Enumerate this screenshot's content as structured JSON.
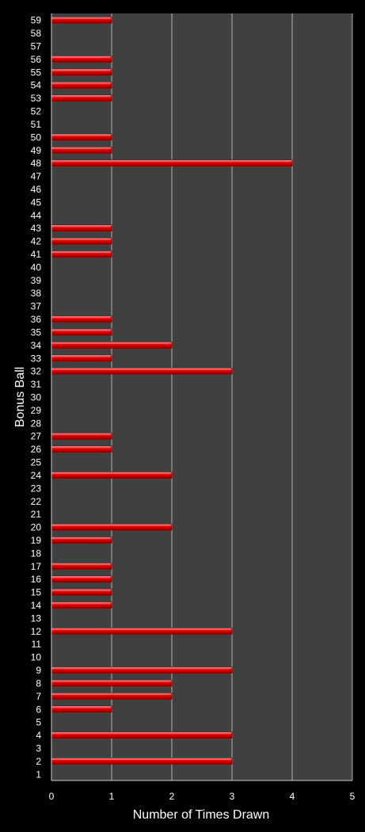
{
  "chart_data": {
    "type": "bar",
    "orientation": "horizontal",
    "xlabel": "Number of Times Drawn",
    "ylabel": "Bonus Ball",
    "xlim": [
      0,
      5
    ],
    "xticks": [
      0,
      1,
      2,
      3,
      4,
      5
    ],
    "grid": true,
    "colors": {
      "background": "#000000",
      "plot_area": "#404040",
      "bar": "#e00000",
      "bar_highlight": "#ff6a6a",
      "bar_shadow": "#7a0000",
      "grid": "#b0b0b0",
      "text": "#ffffff"
    },
    "categories": [
      "1",
      "2",
      "3",
      "4",
      "5",
      "6",
      "7",
      "8",
      "9",
      "10",
      "11",
      "12",
      "13",
      "14",
      "15",
      "16",
      "17",
      "18",
      "19",
      "20",
      "21",
      "22",
      "23",
      "24",
      "25",
      "26",
      "27",
      "28",
      "29",
      "30",
      "31",
      "32",
      "33",
      "34",
      "35",
      "36",
      "37",
      "38",
      "39",
      "40",
      "41",
      "42",
      "43",
      "44",
      "45",
      "46",
      "47",
      "48",
      "49",
      "50",
      "51",
      "52",
      "53",
      "54",
      "55",
      "56",
      "57",
      "58",
      "59"
    ],
    "values": [
      0,
      3,
      0,
      3,
      0,
      1,
      2,
      2,
      3,
      0,
      0,
      3,
      0,
      1,
      1,
      1,
      1,
      0,
      1,
      2,
      0,
      0,
      0,
      2,
      0,
      1,
      1,
      0,
      0,
      0,
      0,
      3,
      1,
      2,
      1,
      1,
      0,
      0,
      0,
      0,
      1,
      1,
      1,
      0,
      0,
      0,
      0,
      4,
      1,
      1,
      0,
      0,
      1,
      1,
      1,
      1,
      0,
      0,
      1
    ]
  }
}
